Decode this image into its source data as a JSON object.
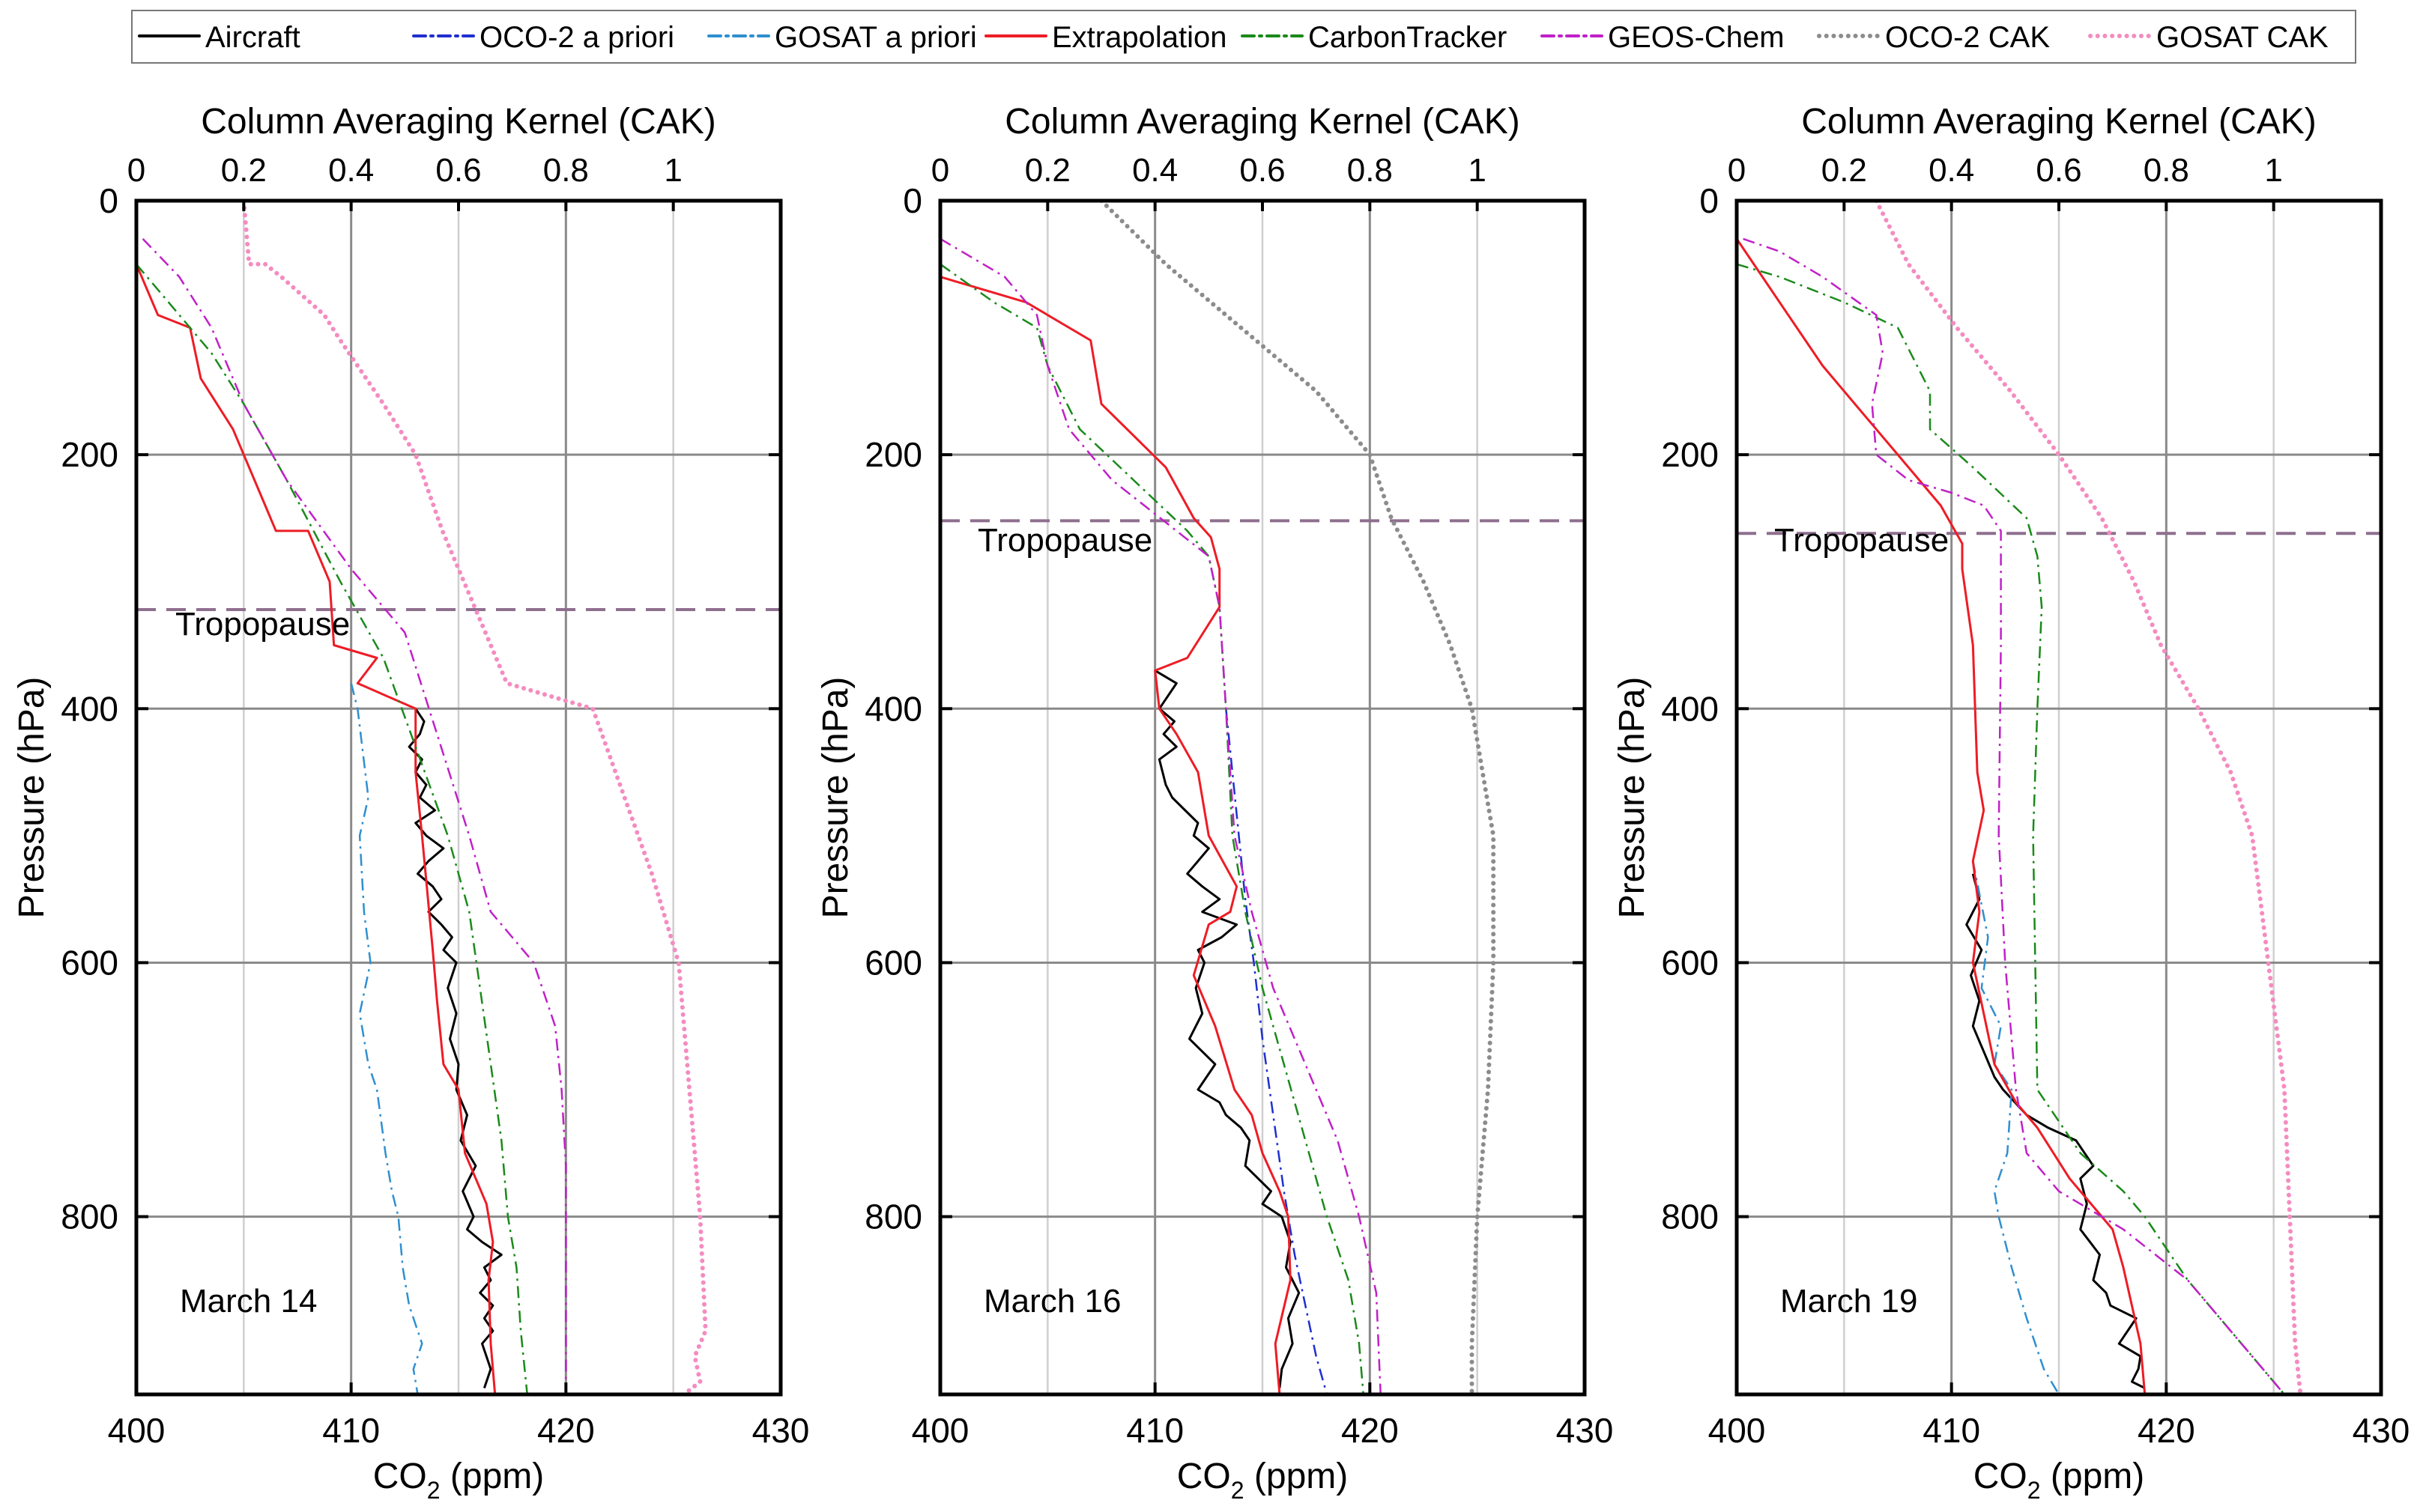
{
  "legend": [
    {
      "label": "Aircraft",
      "color": "#000000",
      "dash": "solid",
      "width": 3
    },
    {
      "label": "OCO-2 a priori",
      "color": "#1f2fd0",
      "dash": "dashdot",
      "width": 2.5
    },
    {
      "label": "GOSAT a priori",
      "color": "#2f8fd0",
      "dash": "dashdot",
      "width": 2.5
    },
    {
      "label": "Extrapolation",
      "color": "#ee1c25",
      "dash": "solid",
      "width": 3
    },
    {
      "label": "CarbonTracker",
      "color": "#1a8a1a",
      "dash": "dashdot",
      "width": 2.5
    },
    {
      "label": "GEOS-Chem",
      "color": "#c020c8",
      "dash": "dashdot",
      "width": 2.5
    },
    {
      "label": "OCO-2 CAK",
      "color": "#8c8c8c",
      "dash": "dot",
      "width": 6
    },
    {
      "label": "GOSAT CAK",
      "color": "#f48cc0",
      "dash": "dot",
      "width": 6
    }
  ],
  "tropopause_label": "Tropopause",
  "chart_data": [
    {
      "type": "line",
      "annotation": "March 14",
      "top_axis_label": "Column Averaging Kernel (CAK)",
      "xlabel": "CO2 (ppm)",
      "ylabel": "Pressure (hPa)",
      "xlim": [
        400,
        430
      ],
      "ylim": [
        0,
        940
      ],
      "cak_lim": [
        0,
        1.2
      ],
      "x_ticks": [
        "400",
        "410",
        "420",
        "430"
      ],
      "y_ticks": [
        "0",
        "200",
        "400",
        "600",
        "800"
      ],
      "cak_ticks": [
        "0",
        "0.2",
        "0.4",
        "0.6",
        "0.8",
        "1"
      ],
      "tropopause": 322,
      "series": [
        {
          "name": "Aircraft",
          "x": [
            413.0,
            413.4,
            413.2,
            412.7,
            413.3,
            413.0,
            413.5,
            413.2,
            413.9,
            413.0,
            413.5,
            414.3,
            413.6,
            413.1,
            413.8,
            414.2,
            413.6,
            414.2,
            414.7,
            414.3,
            414.9,
            414.5,
            414.9,
            414.6,
            415.0,
            414.9,
            415.4,
            415.1,
            415.8,
            415.2,
            415.7,
            415.4,
            416.1,
            417.0,
            416.2,
            416.5,
            416.0,
            416.6,
            416.2,
            416.6,
            416.1,
            416.5,
            416.2
          ],
          "y": [
            400,
            410,
            420,
            430,
            440,
            450,
            460,
            470,
            480,
            490,
            500,
            510,
            520,
            530,
            540,
            550,
            560,
            570,
            580,
            590,
            600,
            620,
            640,
            660,
            680,
            700,
            720,
            740,
            760,
            780,
            800,
            810,
            820,
            830,
            840,
            850,
            860,
            870,
            880,
            890,
            900,
            920,
            935
          ]
        },
        {
          "name": "OCO-2 a priori",
          "x": [],
          "y": []
        },
        {
          "name": "GOSAT a priori",
          "x": [
            410.0,
            410.3,
            410.8,
            410.4,
            410.6,
            410.9,
            410.4,
            410.8,
            411.2,
            411.6,
            411.9,
            412.2,
            412.4,
            412.7,
            413.3,
            412.9,
            413.1
          ],
          "y": [
            380,
            400,
            470,
            500,
            560,
            600,
            640,
            680,
            700,
            750,
            780,
            800,
            840,
            870,
            900,
            920,
            940
          ]
        },
        {
          "name": "Extrapolation",
          "x": [
            400.0,
            401.0,
            402.5,
            403.0,
            404.5,
            405.0,
            406.0,
            406.5,
            408.0,
            409.0,
            409.2,
            411.2,
            410.3,
            413.0,
            413.0,
            413.3,
            413.8,
            414.0,
            414.3,
            415.0,
            415.3,
            416.3,
            416.6,
            416.4,
            416.5,
            416.7
          ],
          "y": [
            50,
            90,
            100,
            140,
            180,
            200,
            240,
            260,
            260,
            300,
            350,
            360,
            380,
            400,
            450,
            500,
            590,
            630,
            680,
            700,
            750,
            790,
            820,
            850,
            900,
            940
          ]
        },
        {
          "name": "CarbonTracker",
          "x": [
            400.0,
            402.0,
            403.5,
            405.0,
            407.0,
            409.5,
            411.5,
            413.0,
            414.5,
            415.5,
            416.0,
            416.5,
            417.0,
            417.3,
            417.7,
            417.9,
            418.2
          ],
          "y": [
            50,
            90,
            120,
            160,
            220,
            300,
            360,
            430,
            500,
            560,
            620,
            680,
            740,
            800,
            840,
            890,
            940
          ]
        },
        {
          "name": "GEOS-Chem",
          "x": [
            400.3,
            402.0,
            403.5,
            405.0,
            407.0,
            410.0,
            412.5,
            414.0,
            415.5,
            416.5,
            417.5,
            418.5,
            419.5,
            419.8,
            420.0,
            420.0,
            420.0
          ],
          "y": [
            30,
            60,
            100,
            160,
            220,
            290,
            340,
            420,
            500,
            560,
            580,
            600,
            650,
            700,
            760,
            850,
            940
          ]
        },
        {
          "name": "OCO-2 CAK",
          "x": [],
          "y": []
        },
        {
          "name": "GOSAT CAK",
          "x": [
            0.2,
            0.21,
            0.24,
            0.27,
            0.35,
            0.38,
            0.46,
            0.52,
            0.57,
            0.61,
            0.69,
            0.85,
            0.96,
            1.01,
            1.05,
            1.06,
            1.04,
            1.05,
            1.02
          ],
          "y": [
            0,
            50,
            50,
            60,
            90,
            110,
            160,
            200,
            260,
            300,
            380,
            400,
            530,
            600,
            800,
            890,
            910,
            930,
            940
          ]
        }
      ]
    },
    {
      "type": "line",
      "annotation": "March 16",
      "top_axis_label": "Column Averaging Kernel (CAK)",
      "xlabel": "CO2 (ppm)",
      "ylabel": "Pressure (hPa)",
      "xlim": [
        400,
        430
      ],
      "ylim": [
        0,
        940
      ],
      "cak_lim": [
        0,
        1.2
      ],
      "x_ticks": [
        "400",
        "410",
        "420",
        "430"
      ],
      "y_ticks": [
        "0",
        "200",
        "400",
        "600",
        "800"
      ],
      "cak_ticks": [
        "0",
        "0.2",
        "0.4",
        "0.6",
        "0.8",
        "1"
      ],
      "tropopause": 252,
      "series": [
        {
          "name": "Aircraft",
          "x": [
            410.0,
            411.0,
            410.2,
            410.9,
            410.4,
            411.0,
            410.2,
            410.5,
            410.8,
            411.4,
            412.0,
            411.8,
            412.5,
            412.0,
            411.5,
            412.2,
            413.0,
            412.2,
            413.8,
            413.1,
            412.0,
            412.3,
            411.9,
            412.2,
            411.6,
            412.8,
            412.0,
            413.0,
            413.3,
            414.0,
            414.4,
            414.2,
            415.4,
            415.0,
            415.9,
            416.3,
            416.1,
            416.7,
            416.2,
            416.4,
            415.9,
            415.8
          ],
          "y": [
            370,
            380,
            400,
            410,
            420,
            430,
            440,
            460,
            470,
            480,
            490,
            500,
            510,
            520,
            530,
            540,
            550,
            560,
            570,
            580,
            590,
            600,
            620,
            640,
            660,
            680,
            700,
            710,
            720,
            730,
            740,
            760,
            780,
            790,
            800,
            820,
            840,
            860,
            880,
            900,
            920,
            935
          ]
        },
        {
          "name": "OCO-2 a priori",
          "x": [
            413.3,
            413.6,
            413.9,
            414.2,
            414.6,
            415.0,
            415.5,
            416.0,
            416.5,
            417.0,
            417.5,
            418.0
          ],
          "y": [
            400,
            450,
            500,
            550,
            600,
            660,
            720,
            780,
            830,
            870,
            910,
            940
          ]
        },
        {
          "name": "GOSAT a priori",
          "x": [],
          "y": []
        },
        {
          "name": "Extrapolation",
          "x": [
            400.0,
            404.0,
            407.0,
            407.5,
            410.5,
            411.8,
            412.6,
            413.0,
            413.0,
            411.5,
            410.0,
            410.2,
            411.0,
            412.0,
            412.5,
            413.8,
            413.5,
            412.5,
            411.8,
            412.8,
            413.7,
            414.5,
            415.0,
            415.8,
            416.2,
            416.3,
            415.6,
            415.8
          ],
          "y": [
            60,
            80,
            110,
            160,
            210,
            250,
            265,
            290,
            320,
            360,
            370,
            400,
            420,
            450,
            500,
            540,
            560,
            570,
            610,
            650,
            700,
            720,
            750,
            780,
            800,
            850,
            900,
            940
          ]
        },
        {
          "name": "CarbonTracker",
          "x": [
            400.0,
            402.5,
            404.5,
            405.0,
            406.5,
            409.0,
            411.5,
            412.5,
            413.0,
            413.3,
            413.6,
            414.2,
            415.0,
            416.0,
            417.0,
            418.0,
            419.0,
            419.5,
            419.7
          ],
          "y": [
            50,
            80,
            100,
            130,
            180,
            220,
            260,
            280,
            320,
            400,
            500,
            560,
            620,
            680,
            740,
            800,
            850,
            900,
            940
          ]
        },
        {
          "name": "GEOS-Chem",
          "x": [
            400.0,
            403.0,
            404.5,
            405.0,
            406.0,
            408.0,
            411.0,
            412.5,
            413.0,
            413.3,
            413.7,
            414.5,
            415.5,
            417.0,
            418.5,
            419.5,
            420.3,
            420.5
          ],
          "y": [
            30,
            60,
            90,
            130,
            180,
            220,
            260,
            280,
            320,
            400,
            500,
            560,
            620,
            680,
            740,
            800,
            860,
            940
          ]
        },
        {
          "name": "OCO-2 CAK",
          "x": [
            0.3,
            0.42,
            0.56,
            0.7,
            0.8,
            0.84,
            0.9,
            0.95,
            0.99,
            1.01,
            1.03,
            1.03,
            1.02,
            1.0,
            0.99,
            0.99
          ],
          "y": [
            0,
            50,
            100,
            150,
            200,
            250,
            300,
            350,
            400,
            450,
            500,
            600,
            700,
            800,
            900,
            940
          ]
        },
        {
          "name": "GOSAT CAK",
          "x": [],
          "y": []
        }
      ]
    },
    {
      "type": "line",
      "annotation": "March 19",
      "top_axis_label": "Column Averaging Kernel (CAK)",
      "xlabel": "CO2 (ppm)",
      "ylabel": "Pressure (hPa)",
      "xlim": [
        400,
        430
      ],
      "ylim": [
        0,
        940
      ],
      "cak_lim": [
        0,
        1.2
      ],
      "x_ticks": [
        "400",
        "410",
        "420",
        "430"
      ],
      "y_ticks": [
        "0",
        "200",
        "400",
        "600",
        "800"
      ],
      "cak_ticks": [
        "0",
        "0.2",
        "0.4",
        "0.6",
        "0.8",
        "1"
      ],
      "tropopause": 262,
      "series": [
        {
          "name": "Aircraft",
          "x": [
            411.0,
            411.3,
            410.7,
            411.4,
            410.9,
            411.3,
            411.0,
            411.5,
            412.0,
            412.4,
            413.5,
            414.5,
            415.8,
            416.2,
            416.6,
            416.0,
            416.3,
            416.0,
            416.9,
            416.6,
            417.2,
            417.4,
            418.6,
            417.8,
            418.8,
            418.7,
            418.4,
            419.0
          ],
          "y": [
            530,
            550,
            570,
            590,
            610,
            630,
            650,
            670,
            690,
            700,
            720,
            730,
            740,
            750,
            760,
            770,
            790,
            810,
            830,
            850,
            860,
            870,
            880,
            900,
            910,
            920,
            930,
            935
          ]
        },
        {
          "name": "OCO-2 a priori",
          "x": [],
          "y": []
        },
        {
          "name": "GOSAT a priori",
          "x": [
            411.0,
            411.7,
            411.4,
            412.3,
            412.0,
            412.8,
            412.6,
            412.0,
            412.2,
            412.8,
            413.5,
            414.3,
            415.0
          ],
          "y": [
            520,
            580,
            620,
            650,
            680,
            700,
            750,
            780,
            800,
            840,
            880,
            920,
            940
          ]
        },
        {
          "name": "Extrapolation",
          "x": [
            400.0,
            402.0,
            404.0,
            406.0,
            407.5,
            408.5,
            409.5,
            410.5,
            410.5,
            411.0,
            411.2,
            411.5,
            411.0,
            411.3,
            411.0,
            411.5,
            412.0,
            413.0,
            414.0,
            415.5,
            416.5,
            417.5,
            418.0,
            418.8,
            419.0
          ],
          "y": [
            30,
            80,
            130,
            170,
            200,
            220,
            240,
            270,
            290,
            350,
            450,
            480,
            520,
            560,
            600,
            640,
            680,
            710,
            730,
            770,
            790,
            810,
            840,
            900,
            940
          ]
        },
        {
          "name": "CarbonTracker",
          "x": [
            400.0,
            402.0,
            405.0,
            407.5,
            409.0,
            409.0,
            411.0,
            413.5,
            414.0,
            414.2,
            414.0,
            413.8,
            414.0,
            416.0,
            418.0,
            419.0,
            421.0,
            423.5,
            425.5
          ],
          "y": [
            50,
            60,
            80,
            100,
            150,
            180,
            210,
            250,
            280,
            320,
            400,
            500,
            700,
            750,
            780,
            800,
            850,
            900,
            940
          ]
        },
        {
          "name": "GEOS-Chem",
          "x": [
            400.3,
            402.0,
            404.0,
            406.5,
            406.8,
            406.3,
            406.5,
            408.0,
            410.0,
            411.5,
            412.3,
            412.3,
            412.2,
            412.5,
            413.0,
            413.5,
            415.0,
            418.0,
            421.0,
            423.5,
            425.5
          ],
          "y": [
            30,
            40,
            60,
            90,
            120,
            160,
            200,
            220,
            230,
            240,
            260,
            350,
            500,
            600,
            700,
            750,
            780,
            810,
            850,
            900,
            940
          ]
        },
        {
          "name": "OCO-2 CAK",
          "x": [],
          "y": []
        },
        {
          "name": "GOSAT CAK",
          "x": [
            0.26,
            0.32,
            0.41,
            0.51,
            0.6,
            0.68,
            0.74,
            0.79,
            0.86,
            0.92,
            0.96,
            0.99,
            1.02,
            1.03,
            1.04,
            1.05
          ],
          "y": [
            0,
            50,
            100,
            150,
            200,
            250,
            300,
            350,
            400,
            450,
            500,
            600,
            700,
            800,
            900,
            940
          ]
        }
      ]
    }
  ]
}
